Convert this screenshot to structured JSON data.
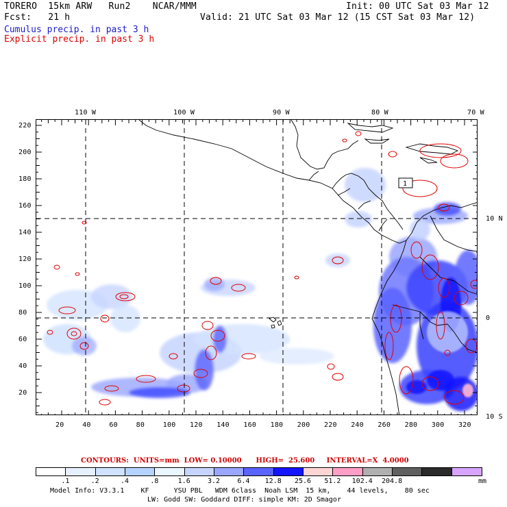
{
  "header": {
    "model": "TORERO  15km ARW   Run2    NCAR/MMM",
    "init": "Init: 00 UTC Sat 03 Mar 12",
    "fcst": "Fcst:   21 h",
    "valid": "Valid: 21 UTC Sat 03 Mar 12 (15 CST Sat 03 Mar 12)"
  },
  "legend": {
    "cumulus": "Cumulus precip. in past 3 h",
    "explicit": "Explicit precip. in past 3 h",
    "cumulus_color": "#1a1acc",
    "explicit_color": "#dd0000"
  },
  "axes": {
    "top_lon_labels": [
      "110 W",
      "100 W",
      "90 W",
      "80 W",
      "70 W"
    ],
    "right_lat_labels": [
      "10 N",
      "0",
      "10 S"
    ],
    "left_y_ticks": [
      "220",
      "200",
      "180",
      "160",
      "140",
      "120",
      "100",
      "80",
      "60",
      "40",
      "20"
    ],
    "bottom_x_ticks": [
      "20",
      "40",
      "60",
      "80",
      "100",
      "120",
      "140",
      "160",
      "180",
      "200",
      "220",
      "240",
      "260",
      "280",
      "300",
      "320"
    ]
  },
  "box_label": "1",
  "contours": {
    "text": "CONTOURS:  UNITS=mm  LOW= 0.10000      HIGH=  25.600     INTERVAL=X  4.0000",
    "units": "mm",
    "low": "0.10000",
    "high": "25.600",
    "interval": "X  4.0000"
  },
  "colorbar": {
    "unit": "mm",
    "colors": [
      "#ffffff",
      "#e6f0ff",
      "#cfe2ff",
      "#b5d3ff",
      "#e9f5ff",
      "#c7d4ff",
      "#9aa6ff",
      "#5a63ff",
      "#1414ff",
      "#ffd4d4",
      "#ff9fc8",
      "#b0b0b0",
      "#606060",
      "#2a2a2a",
      "#d7a4ff"
    ],
    "labels": [
      ".1",
      ".2",
      ".4",
      ".8",
      "1.6",
      "3.2",
      "6.4",
      "12.8",
      "25.6",
      "51.2",
      "102.4",
      "204.8"
    ]
  },
  "footer": {
    "line1": "Model Info: V3.3.1    KF      YSU PBL   WDM 6class  Noah LSM  15 km,    44 levels,    80 sec",
    "line2": "LW: Godd SW: Goddard DIFF: simple KM: 2D Smagor"
  }
}
